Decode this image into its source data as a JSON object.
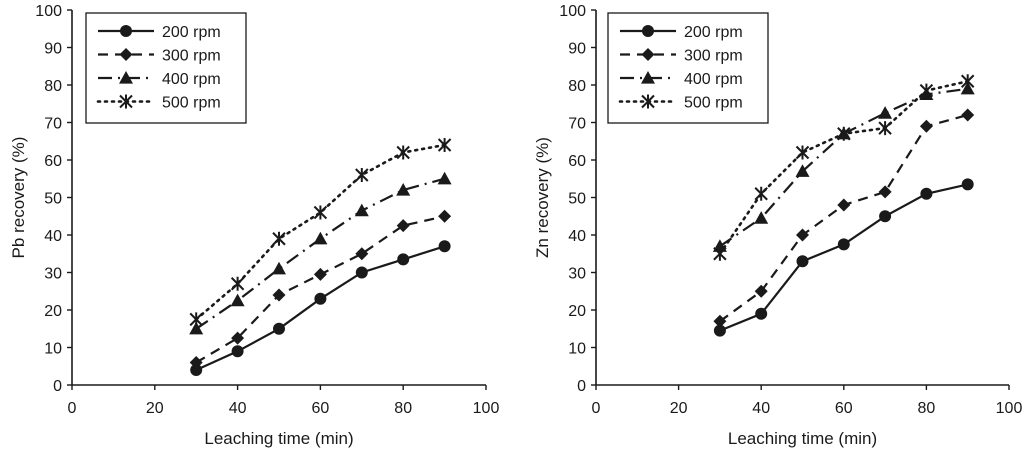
{
  "chart_data": [
    {
      "type": "line",
      "title": "",
      "xlabel": "Leaching time (min)",
      "ylabel": "Pb recovery (%)",
      "xlim": [
        0,
        100
      ],
      "ylim": [
        0,
        100
      ],
      "xticks": [
        0,
        20,
        40,
        60,
        80,
        100
      ],
      "yticks": [
        0,
        10,
        20,
        30,
        40,
        50,
        60,
        70,
        80,
        90,
        100
      ],
      "grid": false,
      "legend_position": "top-left",
      "x": [
        30,
        40,
        50,
        60,
        70,
        80,
        90
      ],
      "series": [
        {
          "name": "200 rpm",
          "marker": "circle",
          "line": "solid",
          "values": [
            4,
            9,
            15,
            23,
            30,
            33.5,
            37
          ]
        },
        {
          "name": "300 rpm",
          "marker": "diamond",
          "line": "dashed",
          "values": [
            6,
            12.5,
            24,
            29.5,
            35,
            42.5,
            45
          ]
        },
        {
          "name": "400 rpm",
          "marker": "triangle",
          "line": "dash-dot",
          "values": [
            15,
            22.5,
            31,
            39,
            46.5,
            52,
            55
          ]
        },
        {
          "name": "500 rpm",
          "marker": "asterisk",
          "line": "dotted",
          "values": [
            17.5,
            27,
            39,
            46,
            56,
            62,
            64
          ]
        }
      ]
    },
    {
      "type": "line",
      "title": "",
      "xlabel": "Leaching time (min)",
      "ylabel": "Zn recovery (%)",
      "xlim": [
        0,
        100
      ],
      "ylim": [
        0,
        100
      ],
      "xticks": [
        0,
        20,
        40,
        60,
        80,
        100
      ],
      "yticks": [
        0,
        10,
        20,
        30,
        40,
        50,
        60,
        70,
        80,
        90,
        100
      ],
      "grid": false,
      "legend_position": "top-left",
      "x": [
        30,
        40,
        50,
        60,
        70,
        80,
        90
      ],
      "series": [
        {
          "name": "200 rpm",
          "marker": "circle",
          "line": "solid",
          "values": [
            14.5,
            19,
            33,
            37.5,
            45,
            51,
            53.5
          ]
        },
        {
          "name": "300 rpm",
          "marker": "diamond",
          "line": "dashed",
          "values": [
            17,
            25,
            40,
            48,
            51.5,
            69,
            72
          ]
        },
        {
          "name": "400 rpm",
          "marker": "triangle",
          "line": "dash-dot",
          "values": [
            37,
            44.5,
            57,
            67,
            72.5,
            77.5,
            79
          ]
        },
        {
          "name": "500 rpm",
          "marker": "asterisk",
          "line": "dotted",
          "values": [
            35,
            51,
            62,
            67,
            68.5,
            78.5,
            81
          ]
        }
      ]
    }
  ]
}
